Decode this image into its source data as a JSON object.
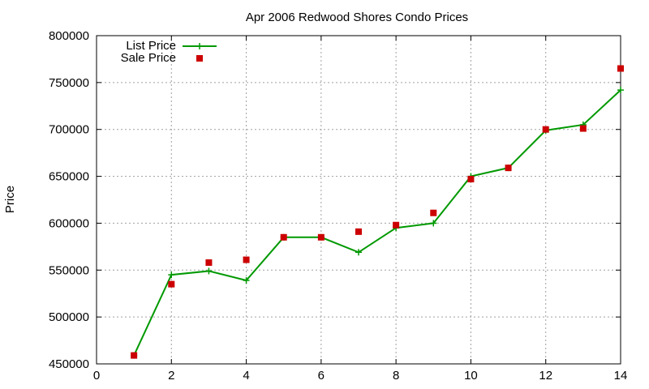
{
  "chart_data": {
    "type": "scatter",
    "title": "Apr 2006 Redwood Shores Condo Prices",
    "xlabel": "",
    "ylabel": "Price",
    "xlim": [
      0,
      14
    ],
    "ylim": [
      450000,
      800000
    ],
    "xticks": [
      0,
      2,
      4,
      6,
      8,
      10,
      12,
      14
    ],
    "yticks": [
      450000,
      500000,
      550000,
      600000,
      650000,
      700000,
      750000,
      800000
    ],
    "grid": true,
    "legend_position": "top-left",
    "series": [
      {
        "name": "List Price",
        "style": "line-with-plus-markers",
        "color": "#009900",
        "x": [
          1,
          2,
          3,
          4,
          5,
          6,
          7,
          8,
          9,
          10,
          11,
          12,
          13,
          14
        ],
        "y": [
          459000,
          545000,
          549000,
          539000,
          585000,
          585000,
          569000,
          595000,
          600000,
          650000,
          659000,
          699000,
          705000,
          742000
        ]
      },
      {
        "name": "Sale Price",
        "style": "square-markers",
        "color": "#cc0000",
        "x": [
          1,
          2,
          3,
          4,
          5,
          6,
          7,
          8,
          9,
          10,
          11,
          12,
          13,
          14
        ],
        "y": [
          459000,
          535000,
          558000,
          561000,
          585000,
          585000,
          591000,
          598000,
          611000,
          647000,
          659000,
          700000,
          701000,
          765000
        ]
      }
    ]
  }
}
